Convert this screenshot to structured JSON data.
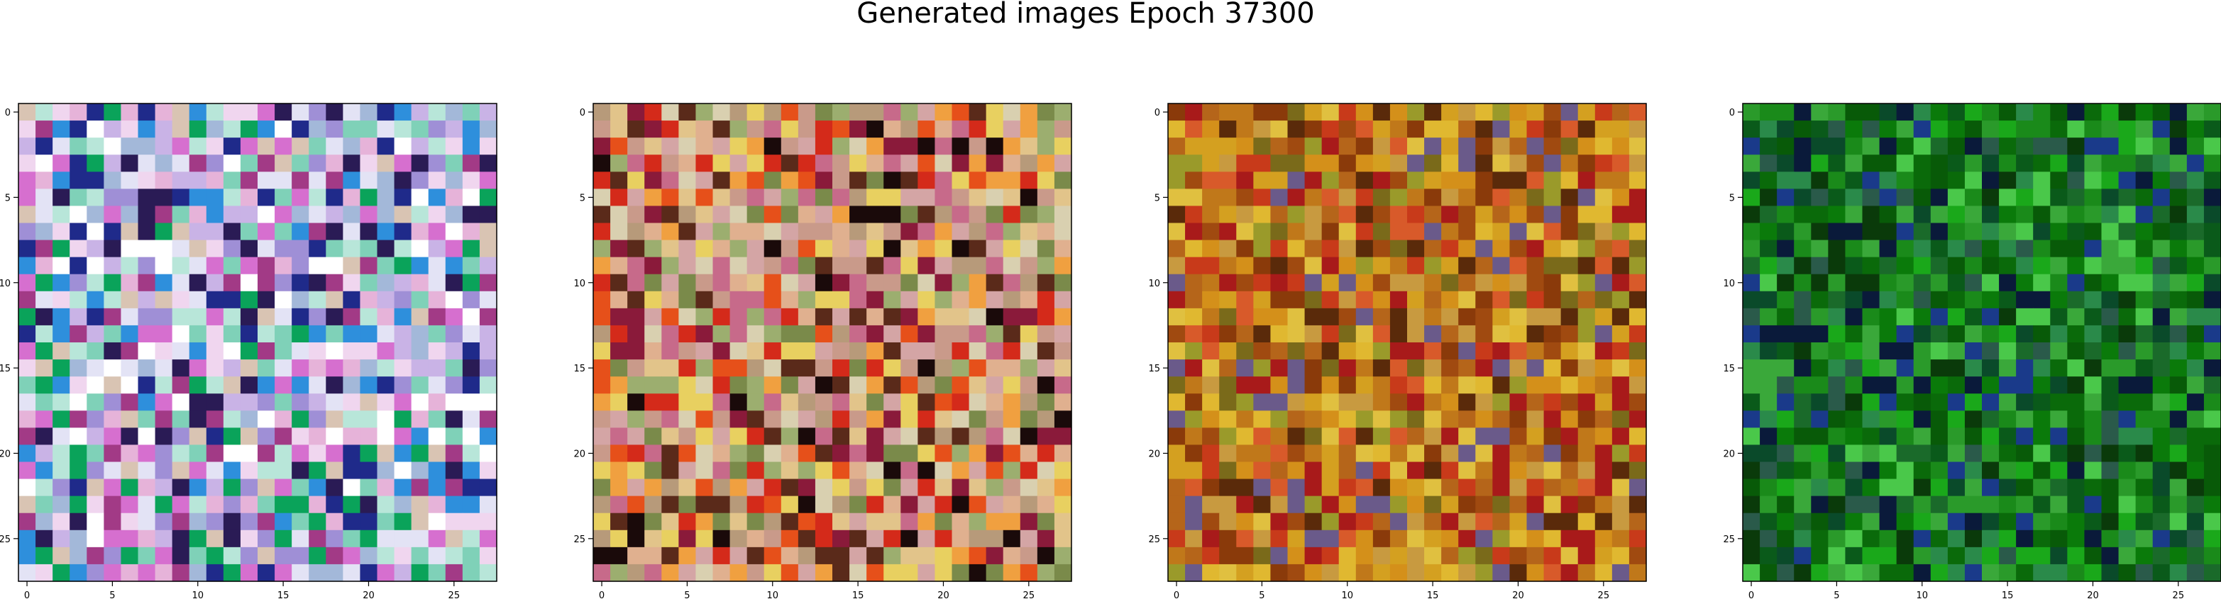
{
  "figure": {
    "title": "Generated images Epoch 37300"
  },
  "chart_data": [
    {
      "type": "heatmap",
      "panel": 1,
      "palette": "pastel",
      "grid_size": 28,
      "xlim": [
        -0.5,
        27.5
      ],
      "ylim": [
        27.5,
        -0.5
      ],
      "x_ticks": [
        0,
        5,
        10,
        15,
        20,
        25
      ],
      "y_ticks": [
        0,
        5,
        10,
        15,
        20,
        25
      ],
      "colors": [
        "#c9b3e6",
        "#e6b3d9",
        "#a3b8d9",
        "#d9c4b3",
        "#b8e6d9",
        "#f0d6ef",
        "#e3e3f5",
        "#9f8fd6",
        "#d66fcf",
        "#7fd1b8",
        "#2a1b55",
        "#1f2a8a",
        "#2e8fdc",
        "#0aa35a",
        "#a23a86",
        "#ffffff"
      ],
      "seed": 11
    },
    {
      "type": "heatmap",
      "panel": 2,
      "palette": "warm",
      "grid_size": 28,
      "xlim": [
        -0.5,
        27.5
      ],
      "ylim": [
        27.5,
        -0.5
      ],
      "x_ticks": [
        0,
        5,
        10,
        15,
        20,
        25
      ],
      "y_ticks": [
        0,
        5,
        10,
        15,
        20,
        25
      ],
      "colors": [
        "#d4a5a5",
        "#c99a8a",
        "#e0b08f",
        "#b79a7a",
        "#9cae6f",
        "#e2c48a",
        "#f0a040",
        "#e6501a",
        "#d42a1a",
        "#8a1a3a",
        "#c76a8a",
        "#d9d0b0",
        "#7a8a4a",
        "#5a2a1a",
        "#e8d060",
        "#1a0a0a"
      ],
      "seed": 23
    },
    {
      "type": "heatmap",
      "panel": 3,
      "palette": "orange",
      "grid_size": 28,
      "xlim": [
        -0.5,
        27.5
      ],
      "ylim": [
        27.5,
        -0.5
      ],
      "x_ticks": [
        0,
        5,
        10,
        15,
        20,
        25
      ],
      "y_ticks": [
        0,
        5,
        10,
        15,
        20,
        25
      ],
      "colors": [
        "#c0781a",
        "#d4901a",
        "#b5651a",
        "#a04a10",
        "#8a3a0a",
        "#d4a020",
        "#e0b830",
        "#9a9a2a",
        "#7a6a1a",
        "#c83a1a",
        "#a81a1a",
        "#e0c040",
        "#5a2a0a",
        "#c89a40",
        "#6a5a8a",
        "#d85a2a"
      ],
      "seed": 37
    },
    {
      "type": "heatmap",
      "panel": 4,
      "palette": "green",
      "grid_size": 28,
      "xlim": [
        -0.5,
        27.5
      ],
      "ylim": [
        27.5,
        -0.5
      ],
      "x_ticks": [
        0,
        5,
        10,
        15,
        20,
        25
      ],
      "y_ticks": [
        0,
        5,
        10,
        15,
        20,
        25
      ],
      "colors": [
        "#0a7a0a",
        "#1a8a1a",
        "#0a6a0a",
        "#085a08",
        "#2a9a2a",
        "#1aa81a",
        "#0a5a1a",
        "#0a4a2a",
        "#2a5a4a",
        "#1a3a8a",
        "#0a1a3a",
        "#3aa83a",
        "#4ac84a",
        "#2a8a4a",
        "#0a3a0a",
        "#1a6a2a"
      ],
      "seed": 53
    }
  ]
}
